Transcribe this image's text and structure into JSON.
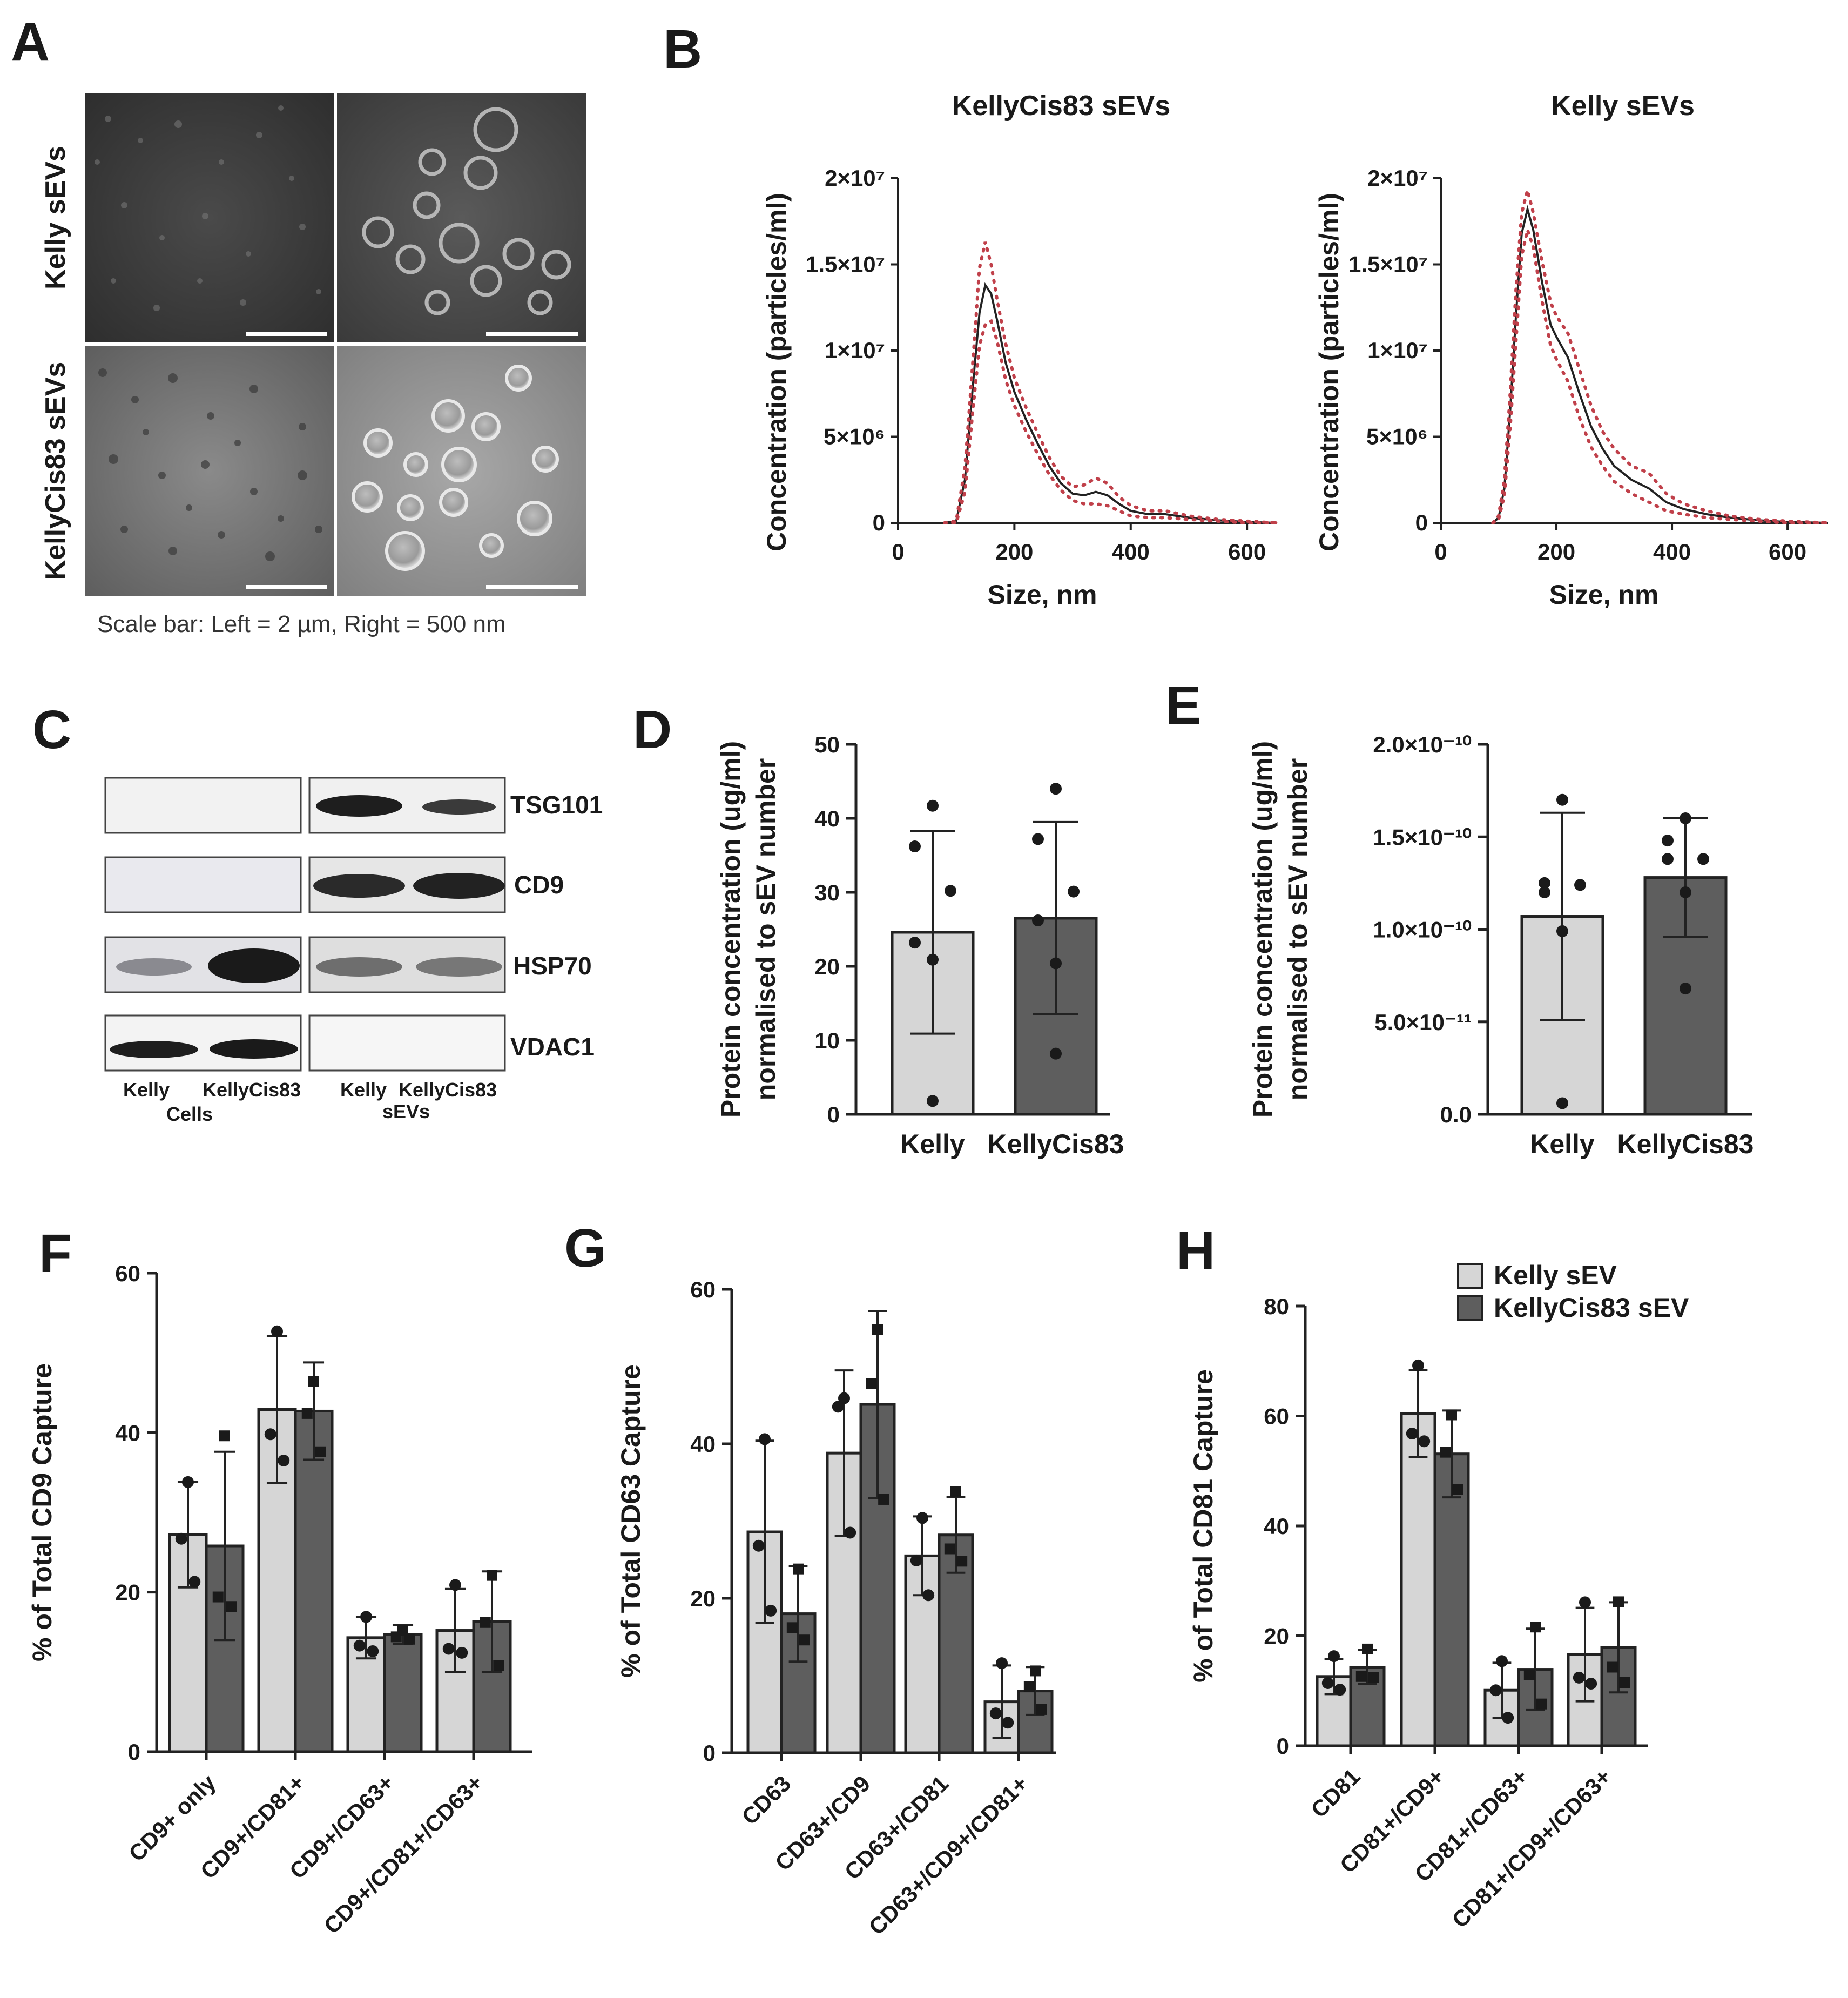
{
  "colors": {
    "kelly": "#d6d6d6",
    "kellycis": "#5e5e5e",
    "nta_line": "#222222",
    "nta_ci": "#c0404a"
  },
  "panel_labels": [
    "A",
    "B",
    "C",
    "D",
    "E",
    "F",
    "G",
    "H"
  ],
  "panel_a": {
    "row_labels": [
      "Kelly sEVs",
      "KellyCis83 sEVs"
    ],
    "caption": "Scale bar: Left = 2 µm, Right = 500 nm"
  },
  "panel_c": {
    "bands": [
      "TSG101",
      "CD9",
      "HSP70",
      "VDAC1"
    ],
    "lane_labels": [
      "Kelly",
      "KellyCis83",
      "Kelly",
      "KellyCis83"
    ],
    "group_labels": [
      "Cells",
      "sEVs"
    ]
  },
  "chart_data": [
    {
      "id": "B1",
      "type": "line",
      "title": "KellyCis83 sEVs",
      "xlabel": "Size, nm",
      "ylabel": "Concentration (particles/ml)",
      "xlim": [
        0,
        650
      ],
      "ylim": [
        0,
        20000000.0
      ],
      "xticks": [
        "0",
        "200",
        "400",
        "600"
      ],
      "yticks": [
        "0",
        "5×10⁶",
        "1×10⁷",
        "1.5×10⁷",
        "2×10⁷"
      ],
      "x": [
        80,
        100,
        115,
        130,
        140,
        150,
        160,
        170,
        185,
        200,
        220,
        240,
        260,
        280,
        300,
        320,
        340,
        360,
        380,
        400,
        430,
        460,
        500,
        550,
        600,
        650
      ],
      "series": [
        {
          "values": [
            0,
            100000.0,
            2500000.0,
            8500000.0,
            12200000.0,
            13800000.0,
            13300000.0,
            11800000.0,
            9300000.0,
            7600000.0,
            6000000.0,
            4600000.0,
            3300000.0,
            2300000.0,
            1700000.0,
            1600000.0,
            1800000.0,
            1600000.0,
            1100000.0,
            700000.0,
            500000.0,
            500000.0,
            300000.0,
            150000.0,
            50000.0,
            0
          ]
        },
        {
          "values": [
            0,
            100000.0,
            3200000.0,
            10000000.0,
            14800000.0,
            16300000.0,
            15000000.0,
            13000000.0,
            10400000.0,
            8400000.0,
            6700000.0,
            5200000.0,
            3800000.0,
            2700000.0,
            2100000.0,
            2200000.0,
            2600000.0,
            2300000.0,
            1500000.0,
            1000000.0,
            700000.0,
            700000.0,
            400000.0,
            200000.0,
            100000.0,
            0
          ]
        },
        {
          "values": [
            0,
            0,
            1800000.0,
            7000000.0,
            10300000.0,
            11500000.0,
            11700000.0,
            10600000.0,
            8300000.0,
            6800000.0,
            5300000.0,
            4000000.0,
            2800000.0,
            1900000.0,
            1300000.0,
            1100000.0,
            1100000.0,
            1000000.0,
            700000.0,
            400000.0,
            300000.0,
            300000.0,
            200000.0,
            100000.0,
            0,
            0
          ]
        }
      ]
    },
    {
      "id": "B2",
      "type": "line",
      "title": "Kelly sEVs",
      "xlabel": "Size, nm",
      "ylabel": "Concentration (particles/ml)",
      "xlim": [
        0,
        670
      ],
      "ylim": [
        0,
        20000000.0
      ],
      "xticks": [
        "0",
        "200",
        "400",
        "600"
      ],
      "yticks": [
        "0",
        "5×10⁶",
        "1×10⁷",
        "1.5×10⁷",
        "2×10⁷"
      ],
      "x": [
        90,
        100,
        110,
        120,
        130,
        140,
        150,
        160,
        175,
        190,
        200,
        220,
        240,
        260,
        280,
        300,
        330,
        360,
        390,
        420,
        460,
        500,
        550,
        600,
        670
      ],
      "series": [
        {
          "values": [
            0,
            300000.0,
            2000000.0,
            6500000.0,
            12000000.0,
            16800000.0,
            18200000.0,
            17000000.0,
            14000000.0,
            11500000.0,
            10800000.0,
            9600000.0,
            7500000.0,
            5600000.0,
            4300000.0,
            3300000.0,
            2500000.0,
            2000000.0,
            1200000.0,
            800000.0,
            500000.0,
            300000.0,
            150000.0,
            50000.0,
            0
          ]
        },
        {
          "values": [
            0,
            400000.0,
            2500000.0,
            7500000.0,
            13500000.0,
            18000000.0,
            19300000.0,
            18000000.0,
            15200000.0,
            12800000.0,
            12000000.0,
            11000000.0,
            8900000.0,
            6800000.0,
            5300000.0,
            4300000.0,
            3300000.0,
            2900000.0,
            1700000.0,
            1100000.0,
            700000.0,
            400000.0,
            200000.0,
            100000.0,
            0
          ]
        },
        {
          "values": [
            0,
            200000.0,
            1600000.0,
            5500000.0,
            10500000.0,
            15500000.0,
            17000000.0,
            16000000.0,
            12900000.0,
            10300000.0,
            9500000.0,
            8200000.0,
            6100000.0,
            4400000.0,
            3300000.0,
            2400000.0,
            1700000.0,
            1200000.0,
            700000.0,
            500000.0,
            300000.0,
            200000.0,
            100000.0,
            0,
            0
          ]
        }
      ]
    },
    {
      "id": "D",
      "type": "bar",
      "ylabel": [
        "Protein concentration (ug/ml)",
        "normalised to sEV number"
      ],
      "categories": [
        "Kelly",
        "KellyCis83"
      ],
      "ylim": [
        0,
        50
      ],
      "yticks": [
        "0",
        "10",
        "20",
        "30",
        "40",
        "50"
      ],
      "series": [
        {
          "values": [
            24.6,
            26.5
          ],
          "sd": [
            13.7,
            13.0
          ],
          "points": [
            [
              41.7,
              36.2,
              30.2,
              23.2,
              20.9,
              1.8
            ],
            [
              44,
              37.2,
              30.1,
              26.2,
              20.4,
              8.2
            ]
          ]
        }
      ]
    },
    {
      "id": "E",
      "type": "bar",
      "ylabel": [
        "Protein concentration (ug/ml)",
        "normalised to sEV number"
      ],
      "categories": [
        "Kelly",
        "KellyCis83"
      ],
      "ylim": [
        0,
        2e-10
      ],
      "yticks": [
        "0.0",
        "5.0×10⁻¹¹",
        "1.0×10⁻¹⁰",
        "1.5×10⁻¹⁰",
        "2.0×10⁻¹⁰"
      ],
      "series": [
        {
          "values": [
            1.07e-10,
            1.28e-10
          ],
          "sd": [
            5.6e-11,
            3.2e-11
          ],
          "points": [
            [
              1.7e-10,
              1.25e-10,
              1.24e-10,
              1.2e-10,
              9.9e-11,
              6e-12
            ],
            [
              1.6e-10,
              1.48e-10,
              1.38e-10,
              1.38e-10,
              1.2e-10,
              6.8e-11
            ]
          ]
        }
      ]
    },
    {
      "id": "F",
      "type": "bar",
      "ylabel": "% of Total CD9 Capture",
      "categories": [
        "CD9+ only",
        "CD9+/CD81+",
        "CD9+/CD63+",
        "CD9+/CD81+/CD63+"
      ],
      "ylim": [
        0,
        60
      ],
      "yticks": [
        "0",
        "20",
        "40",
        "60"
      ],
      "series": [
        {
          "name": "Kelly sEV",
          "values": [
            27.2,
            42.9,
            14.3,
            15.2
          ],
          "sd": [
            6.6,
            9.2,
            2.6,
            5.2
          ],
          "points": [
            [
              33.8,
              26.7,
              21.3
            ],
            [
              52.7,
              39.8,
              36.5
            ],
            [
              16.9,
              13.3,
              12.6
            ],
            [
              20.9,
              12.9,
              12.4
            ]
          ]
        },
        {
          "name": "KellyCis83 sEV",
          "values": [
            25.8,
            42.7,
            14.7,
            16.3
          ],
          "sd": [
            11.8,
            6.1,
            1.2,
            6.3
          ],
          "points": [
            [
              39.6,
              19.4,
              18.2
            ],
            [
              46.4,
              42.4,
              37.6
            ],
            [
              15.2,
              14.4,
              14.1
            ],
            [
              22.1,
              16.2,
              10.8
            ]
          ]
        }
      ]
    },
    {
      "id": "G",
      "type": "bar",
      "ylabel": "% of Total CD63 Capture",
      "categories": [
        "CD63",
        "CD63+/CD9",
        "CD63+/CD81",
        "CD63+/CD9+/CD81+"
      ],
      "ylim": [
        0,
        60
      ],
      "yticks": [
        "0",
        "20",
        "40",
        "60"
      ],
      "series": [
        {
          "name": "Kelly sEV",
          "values": [
            28.6,
            38.8,
            25.5,
            6.6
          ],
          "sd": [
            11.8,
            10.7,
            5.1,
            4.7
          ],
          "points": [
            [
              40.6,
              26.8,
              18.4
            ],
            [
              45.9,
              44.8,
              28.5
            ],
            [
              30.4,
              24.9,
              20.4
            ],
            [
              11.6,
              5.1,
              3.9
            ]
          ]
        },
        {
          "name": "KellyCis83 sEV",
          "values": [
            18.0,
            45.1,
            28.2,
            8.0
          ],
          "sd": [
            6.2,
            12.1,
            4.9,
            3.1
          ],
          "points": [
            [
              23.8,
              16.2,
              14.6
            ],
            [
              54.8,
              47.8,
              32.8
            ],
            [
              33.8,
              26.4,
              24.8
            ],
            [
              10.6,
              8.6,
              5.6
            ]
          ]
        }
      ]
    },
    {
      "id": "H",
      "type": "bar",
      "ylabel": "% of Total CD81 Capture",
      "categories": [
        "CD81",
        "CD81+/CD9+",
        "CD81+/CD63+",
        "CD81+/CD9+/CD63+"
      ],
      "ylim": [
        0,
        80
      ],
      "yticks": [
        "0",
        "20",
        "40",
        "60",
        "80"
      ],
      "series": [
        {
          "name": "Kelly sEV",
          "values": [
            12.6,
            60.4,
            10.1,
            16.6
          ],
          "sd": [
            3.2,
            7.9,
            5.0,
            8.5
          ],
          "points": [
            [
              16.3,
              11.4,
              10.2
            ],
            [
              69.2,
              56.8,
              55.4
            ],
            [
              15.4,
              10.1,
              5.1
            ],
            [
              26.1,
              12.4,
              11.3
            ]
          ]
        },
        {
          "name": "KellyCis83 sEV",
          "values": [
            14.3,
            53.1,
            13.9,
            17.9
          ],
          "sd": [
            3.1,
            7.9,
            7.4,
            8.2
          ],
          "points": [
            [
              17.6,
              12.6,
              12.4
            ],
            [
              60.2,
              53.4,
              46.6
            ],
            [
              21.6,
              12.9,
              7.6
            ],
            [
              26.2,
              14.3,
              11.5
            ]
          ]
        }
      ],
      "legend": {
        "position": "top-right",
        "entries": [
          "Kelly sEV",
          "KellyCis83 sEV"
        ]
      }
    }
  ]
}
